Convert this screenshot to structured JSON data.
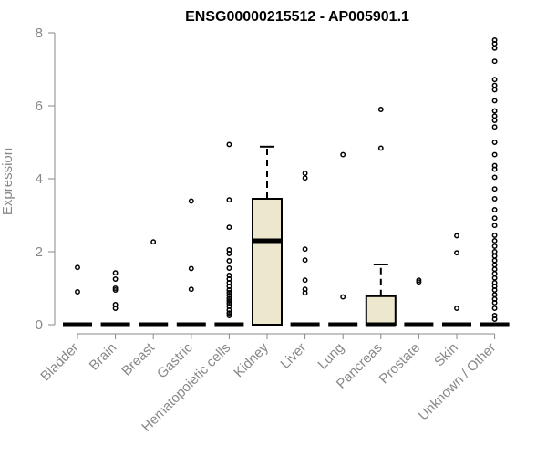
{
  "chart_data": {
    "type": "box",
    "title": "ENSG00000215512 - AP005901.1",
    "ylabel": "Expression",
    "xlabel": "",
    "ylim": [
      0,
      8
    ],
    "yticks": [
      0,
      2,
      4,
      6,
      8
    ],
    "box_fill": "#ede7cd",
    "categories": [
      "Bladder",
      "Brain",
      "Breast",
      "Gastric",
      "Hematopoietic cells",
      "Kidney",
      "Liver",
      "Lung",
      "Pancreas",
      "Prostate",
      "Skin",
      "Unknown / Other"
    ],
    "boxes": [
      {
        "q1": 0,
        "median": 0,
        "q3": 0,
        "whisker_low": 0,
        "whisker_high": 0,
        "outliers": [
          0.9,
          1.57
        ]
      },
      {
        "q1": 0,
        "median": 0,
        "q3": 0,
        "whisker_low": 0,
        "whisker_high": 0,
        "outliers": [
          0.45,
          0.55,
          0.95,
          1.0,
          1.25,
          1.42
        ]
      },
      {
        "q1": 0,
        "median": 0,
        "q3": 0,
        "whisker_low": 0,
        "whisker_high": 0,
        "outliers": [
          2.27
        ]
      },
      {
        "q1": 0,
        "median": 0,
        "q3": 0,
        "whisker_low": 0,
        "whisker_high": 0,
        "outliers": [
          0.97,
          1.54,
          3.39
        ]
      },
      {
        "q1": 0,
        "median": 0,
        "q3": 0,
        "whisker_low": 0,
        "whisker_high": 0,
        "outliers": [
          0.25,
          0.32,
          0.4,
          0.5,
          0.58,
          0.65,
          0.72,
          0.8,
          0.88,
          0.95,
          1.05,
          1.15,
          1.25,
          1.35,
          1.55,
          1.75,
          1.95,
          2.05,
          2.67,
          3.42,
          4.94
        ]
      },
      {
        "q1": 0,
        "median": 2.3,
        "q3": 3.45,
        "whisker_low": 0,
        "whisker_high": 4.88,
        "outliers": []
      },
      {
        "q1": 0,
        "median": 0,
        "q3": 0,
        "whisker_low": 0,
        "whisker_high": 0,
        "outliers": [
          0.87,
          0.97,
          1.22,
          1.77,
          2.07,
          4.02,
          4.15
        ]
      },
      {
        "q1": 0,
        "median": 0,
        "q3": 0,
        "whisker_low": 0,
        "whisker_high": 0,
        "outliers": [
          0.76,
          4.66
        ]
      },
      {
        "q1": 0,
        "median": 0,
        "q3": 0.78,
        "whisker_low": 0,
        "whisker_high": 1.65,
        "outliers": [
          4.84,
          5.9
        ]
      },
      {
        "q1": 0,
        "median": 0,
        "q3": 0,
        "whisker_low": 0,
        "whisker_high": 0,
        "outliers": [
          1.17,
          1.22
        ]
      },
      {
        "q1": 0,
        "median": 0,
        "q3": 0,
        "whisker_low": 0,
        "whisker_high": 0,
        "outliers": [
          0.45,
          1.97,
          2.44
        ]
      },
      {
        "q1": 0,
        "median": 0,
        "q3": 0,
        "whisker_low": 0,
        "whisker_high": 0,
        "outliers": [
          0.15,
          0.25,
          0.45,
          0.6,
          0.7,
          0.82,
          0.95,
          1.05,
          1.15,
          1.28,
          1.4,
          1.52,
          1.64,
          1.76,
          1.88,
          2.0,
          2.15,
          2.3,
          2.45,
          2.72,
          2.92,
          3.15,
          3.45,
          3.72,
          4.04,
          4.26,
          4.36,
          4.66,
          5.0,
          5.42,
          5.6,
          5.72,
          5.86,
          6.14,
          6.44,
          6.56,
          6.72,
          7.22,
          7.58,
          7.7,
          7.8
        ]
      }
    ]
  }
}
